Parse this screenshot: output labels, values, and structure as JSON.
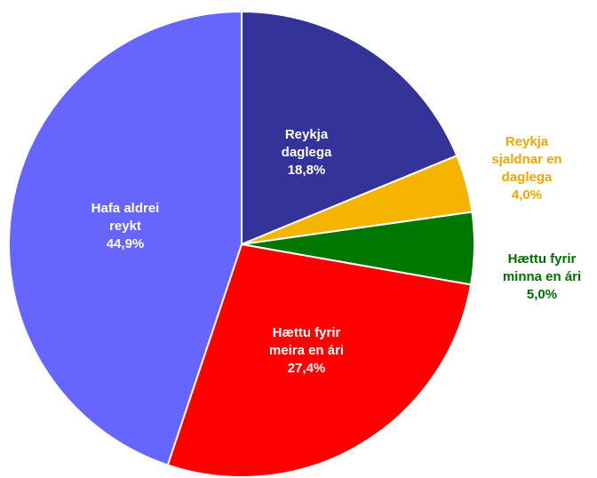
{
  "chart_data": {
    "type": "pie",
    "categories": [
      "Reykja daglega",
      "Reykja sjaldnar en daglega",
      "Hættu fyrir minna en ári",
      "Hættu fyrir meira en ári",
      "Hafa aldrei reykt"
    ],
    "values": [
      18.8,
      4.0,
      5.0,
      27.4,
      44.9
    ],
    "value_labels": [
      "18,8%",
      "4,0%",
      "5,0%",
      "27,4%",
      "44,9%"
    ],
    "colors": [
      "#333399",
      "#f5b400",
      "#007700",
      "#ff0000",
      "#6666ff"
    ],
    "label_colors": [
      "#ffffff",
      "#f0a800",
      "#007000",
      "#ffffff",
      "#ffffff"
    ]
  }
}
